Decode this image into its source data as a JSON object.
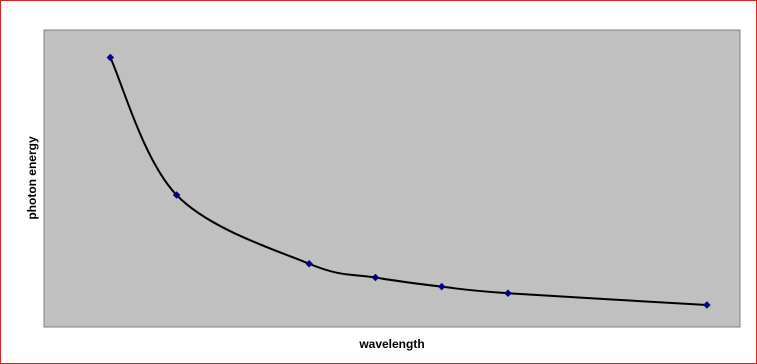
{
  "chart_data": {
    "type": "scatter",
    "title": "",
    "xlabel": "wavelength",
    "ylabel": "photon energy",
    "x": [
      1,
      2,
      4,
      5,
      6,
      7,
      10
    ],
    "y": [
      1.0,
      0.5,
      0.25,
      0.2,
      0.1667,
      0.1429,
      0.1
    ],
    "smooth_line": true,
    "grid": false,
    "legend": "none",
    "xlim": [
      0,
      10.5
    ],
    "ylim": [
      0.02,
      1.1
    ],
    "ticks_shown": false
  },
  "colors": {
    "plot_background": "#c0c0c0",
    "plot_border": "#808080",
    "chart_border": "#e02020",
    "line": "#000000",
    "marker": "#000080"
  }
}
